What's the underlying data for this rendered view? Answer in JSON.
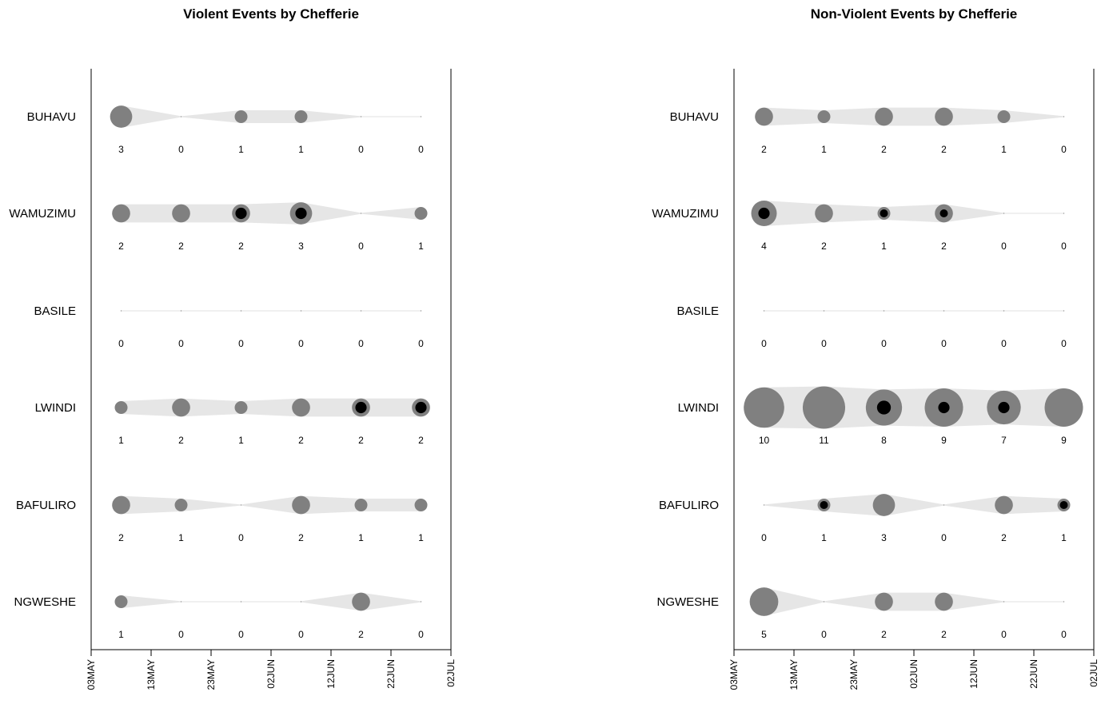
{
  "chart_data": [
    {
      "type": "bubble-timeline",
      "title": "Violent Events by Chefferie",
      "x_ticks": [
        "03MAY",
        "13MAY",
        "23MAY",
        "02JUN",
        "12JUN",
        "22JUN",
        "02JUL"
      ],
      "x_dates": [
        "08MAY",
        "18MAY",
        "28MAY",
        "07JUN",
        "17JUN",
        "27JUN"
      ],
      "grid": false,
      "rows": [
        {
          "name": "BUHAVU",
          "counts": [
            3,
            0,
            1,
            1,
            0,
            0
          ],
          "inner": [
            0,
            0,
            0,
            0,
            0,
            0
          ]
        },
        {
          "name": "WAMUZIMU",
          "counts": [
            2,
            2,
            2,
            3,
            0,
            1
          ],
          "inner": [
            0,
            0,
            2,
            2,
            0,
            0
          ]
        },
        {
          "name": "BASILE",
          "counts": [
            0,
            0,
            0,
            0,
            0,
            0
          ],
          "inner": [
            0,
            0,
            0,
            0,
            0,
            0
          ]
        },
        {
          "name": "LWINDI",
          "counts": [
            1,
            2,
            1,
            2,
            2,
            2
          ],
          "inner": [
            0,
            0,
            0,
            0,
            2,
            2
          ]
        },
        {
          "name": "BAFULIRO",
          "counts": [
            2,
            1,
            0,
            2,
            1,
            1
          ],
          "inner": [
            0,
            0,
            0,
            0,
            0,
            0
          ]
        },
        {
          "name": "NGWESHE",
          "counts": [
            1,
            0,
            0,
            0,
            2,
            0
          ],
          "inner": [
            0,
            0,
            0,
            0,
            0,
            0
          ]
        }
      ]
    },
    {
      "type": "bubble-timeline",
      "title": "Non-Violent Events by Chefferie",
      "x_ticks": [
        "03MAY",
        "13MAY",
        "23MAY",
        "02JUN",
        "12JUN",
        "22JUN",
        "02JUL"
      ],
      "x_dates": [
        "08MAY",
        "18MAY",
        "28MAY",
        "07JUN",
        "17JUN",
        "27JUN"
      ],
      "grid": false,
      "rows": [
        {
          "name": "BUHAVU",
          "counts": [
            2,
            1,
            2,
            2,
            1,
            0
          ],
          "inner": [
            0,
            0,
            0,
            0,
            0,
            0
          ]
        },
        {
          "name": "WAMUZIMU",
          "counts": [
            4,
            2,
            1,
            2,
            0,
            0
          ],
          "inner": [
            2,
            0,
            1,
            1,
            0,
            0
          ]
        },
        {
          "name": "BASILE",
          "counts": [
            0,
            0,
            0,
            0,
            0,
            0
          ],
          "inner": [
            0,
            0,
            0,
            0,
            0,
            0
          ]
        },
        {
          "name": "LWINDI",
          "counts": [
            10,
            11,
            8,
            9,
            7,
            9
          ],
          "inner": [
            0,
            0,
            3,
            2,
            2,
            0
          ]
        },
        {
          "name": "BAFULIRO",
          "counts": [
            0,
            1,
            3,
            0,
            2,
            1
          ],
          "inner": [
            0,
            1,
            0,
            0,
            0,
            1
          ]
        },
        {
          "name": "NGWESHE",
          "counts": [
            5,
            0,
            2,
            2,
            0,
            0
          ],
          "inner": [
            0,
            0,
            0,
            0,
            0,
            0
          ]
        }
      ]
    }
  ],
  "colors": {
    "band": "#e6e6e6",
    "bubble": "#808080",
    "inner": "#000000",
    "axis": "#000000"
  }
}
